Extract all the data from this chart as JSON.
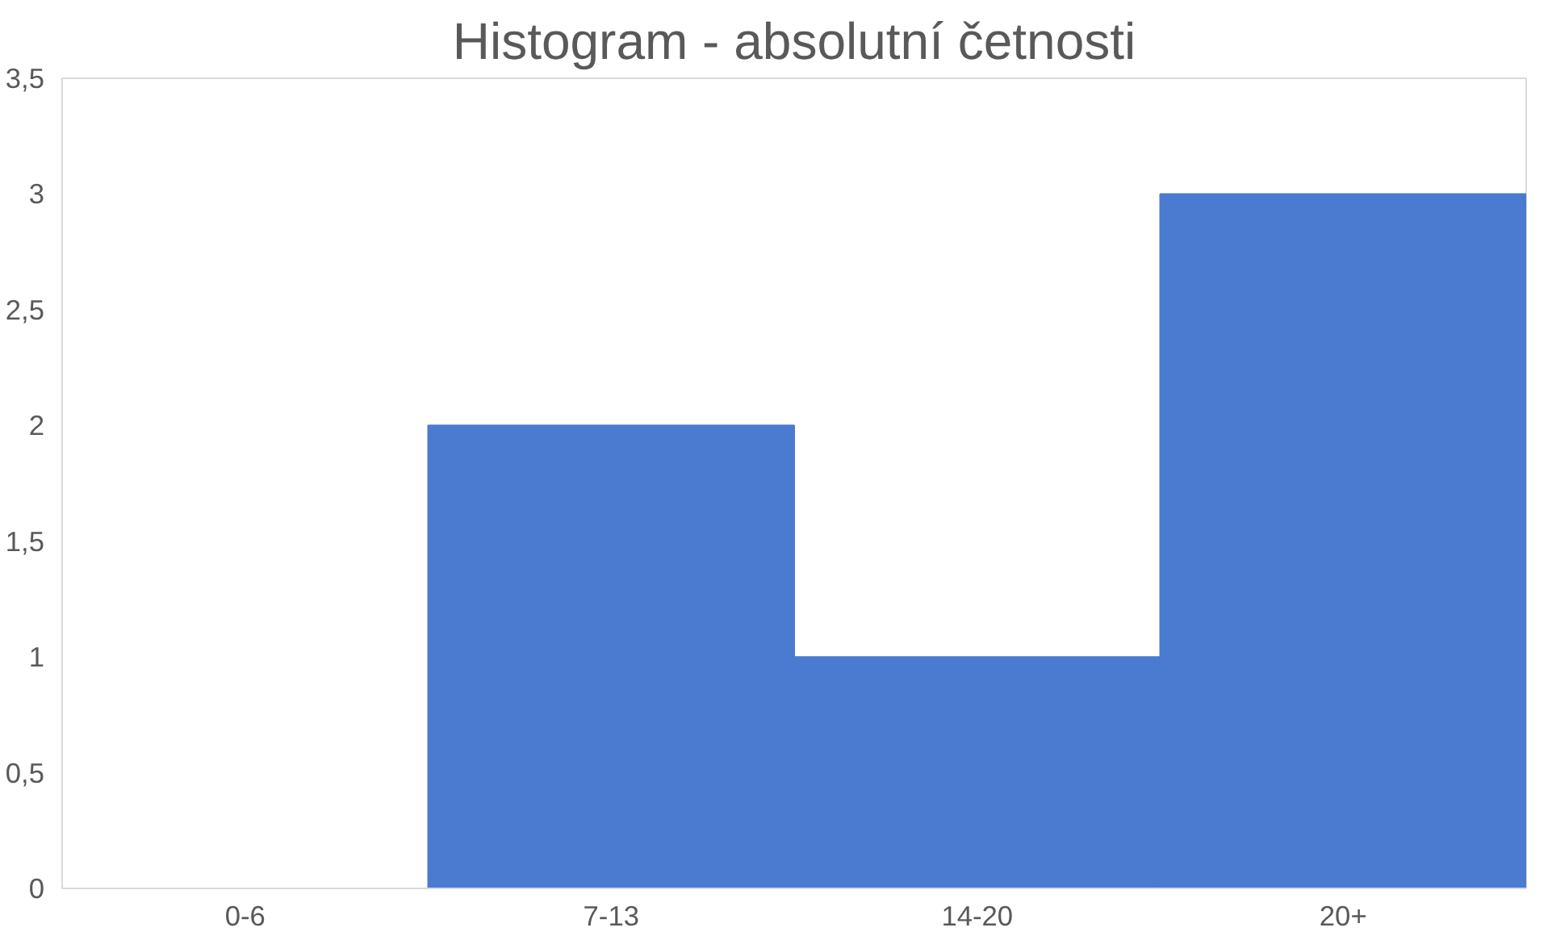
{
  "chart_data": {
    "type": "bar",
    "title": "Histogram - absolutní četnosti",
    "categories": [
      "0-6",
      "7-13",
      "14-20",
      "20+"
    ],
    "values": [
      0,
      2,
      1,
      3
    ],
    "color": "#4a7bd0",
    "ylim": [
      0,
      3.5
    ],
    "yticks": [
      0,
      {
        "value": 0.5,
        "label": "0,5"
      },
      1,
      {
        "value": 1.5,
        "label": "1,5"
      },
      2,
      {
        "value": 2.5,
        "label": "2,5"
      },
      3,
      {
        "value": 3.5,
        "label": "3,5"
      }
    ],
    "grid": false
  }
}
